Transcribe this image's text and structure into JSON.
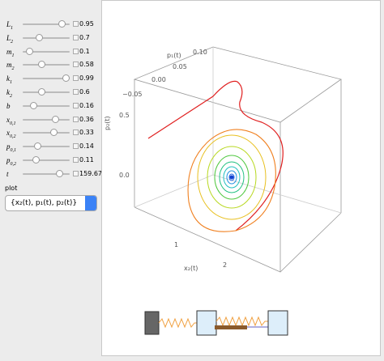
{
  "controls": [
    {
      "symbol": "L",
      "subscript": "1",
      "value": 0.95
    },
    {
      "symbol": "L",
      "subscript": "2",
      "value": 0.7
    },
    {
      "symbol": "m",
      "subscript": "1",
      "value": 0.1
    },
    {
      "symbol": "m",
      "subscript": "2",
      "value": 0.58
    },
    {
      "symbol": "k",
      "subscript": "1",
      "value": 0.99
    },
    {
      "symbol": "k",
      "subscript": "2",
      "value": 0.6
    },
    {
      "symbol": "b",
      "value": 0.16
    },
    {
      "symbol": "x",
      "subscript": "0,1",
      "value": 0.36
    },
    {
      "symbol": "x",
      "subscript": "0,2",
      "value": 0.33
    },
    {
      "symbol": "p",
      "subscript": "0,1",
      "value": 0.14
    },
    {
      "symbol": "p",
      "subscript": "0,2",
      "value": 0.11
    },
    {
      "symbol": "t",
      "value": 159.67
    }
  ],
  "plot_selector": {
    "label": "plot",
    "selected": "{x₂(t), p₁(t), p₂(t)}"
  },
  "plot3d": {
    "p1_axis": {
      "label": "p₁(t)",
      "ticks": [
        "0.10",
        "0.05",
        "0.00",
        "−0.05"
      ]
    },
    "p2_axis": {
      "label": "p₂(t)",
      "ticks": [
        "0.5",
        "0.0"
      ]
    },
    "x2_axis": {
      "label": "x₂(t)",
      "ticks": [
        "1",
        "2"
      ]
    }
  }
}
